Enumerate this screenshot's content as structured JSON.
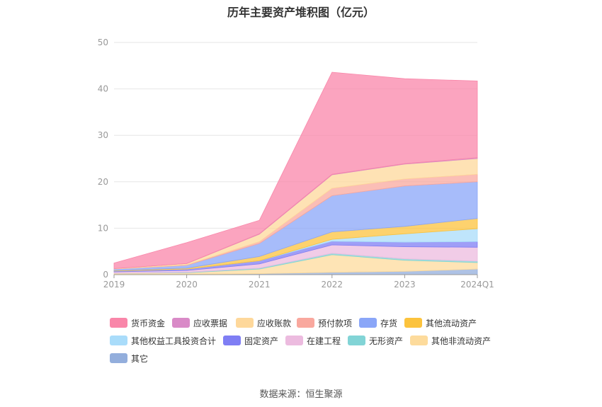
{
  "title": "历年主要资产堆积图（亿元）",
  "source_text": "数据来源：恒生聚源",
  "colors": {
    "货币资金": "#f986a9",
    "应收票据": "#d98ac7",
    "应收账款": "#fed89b",
    "预付款项": "#f9a89e",
    "存货": "#8aa6f8",
    "其他流动资产": "#fcc33d",
    "其他权益工具投资合计": "#a9dcfa",
    "固定资产": "#7f7ef4",
    "在建工程": "#ecbbdf",
    "无形资产": "#82d4d6",
    "其他非流动资产": "#fddb9c",
    "其它": "#93aedc"
  },
  "chart_data": {
    "type": "area",
    "stacked": true,
    "title": "历年主要资产堆积图（亿元）",
    "x": [
      "2019",
      "2020",
      "2021",
      "2022",
      "2023",
      "2024Q1"
    ],
    "ylim": [
      0,
      50
    ],
    "yticks": [
      0,
      10,
      20,
      30,
      40,
      50
    ],
    "grid": true,
    "legend_position": "bottom",
    "series": [
      {
        "name": "其它",
        "values": [
          0.1,
          0.1,
          0.2,
          0.5,
          0.7,
          1.2
        ]
      },
      {
        "name": "其他非流动资产",
        "values": [
          0.2,
          0.3,
          1.0,
          3.8,
          2.4,
          1.4
        ]
      },
      {
        "name": "无形资产",
        "values": [
          0.0,
          0.1,
          0.2,
          0.3,
          0.3,
          0.3
        ]
      },
      {
        "name": "在建工程",
        "values": [
          0.3,
          0.4,
          0.9,
          1.8,
          2.6,
          3.0
        ]
      },
      {
        "name": "固定资产",
        "values": [
          0.2,
          0.3,
          0.7,
          0.8,
          1.0,
          1.2
        ]
      },
      {
        "name": "其他权益工具投资合计",
        "values": [
          0.0,
          0.0,
          0.0,
          0.4,
          1.8,
          2.8
        ]
      },
      {
        "name": "其他流动资产",
        "values": [
          0.1,
          0.2,
          0.9,
          1.6,
          1.6,
          2.2
        ]
      },
      {
        "name": "存货",
        "values": [
          0.3,
          0.6,
          2.8,
          7.8,
          8.7,
          7.9
        ]
      },
      {
        "name": "预付款项",
        "values": [
          0.0,
          0.1,
          0.4,
          1.6,
          1.5,
          1.6
        ]
      },
      {
        "name": "应收账款",
        "values": [
          0.1,
          0.3,
          1.6,
          2.9,
          3.2,
          3.4
        ]
      },
      {
        "name": "应收票据",
        "values": [
          0.0,
          0.0,
          0.1,
          0.1,
          0.1,
          0.2
        ]
      },
      {
        "name": "货币资金",
        "values": [
          1.2,
          4.5,
          2.9,
          22.0,
          18.3,
          16.5
        ]
      }
    ]
  },
  "legend": [
    {
      "label": "货币资金"
    },
    {
      "label": "应收票据"
    },
    {
      "label": "应收账款"
    },
    {
      "label": "预付款项"
    },
    {
      "label": "存货"
    },
    {
      "label": "其他流动资产"
    },
    {
      "label": "其他权益工具投资合计"
    },
    {
      "label": "固定资产"
    },
    {
      "label": "在建工程"
    },
    {
      "label": "无形资产"
    },
    {
      "label": "其他非流动资产"
    },
    {
      "label": "其它"
    }
  ]
}
